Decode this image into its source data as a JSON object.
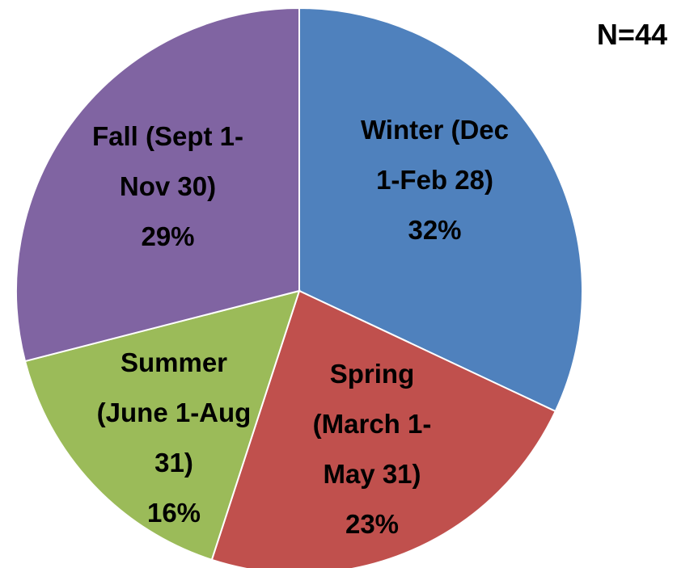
{
  "chart_data": {
    "type": "pie",
    "annotation": "N=44",
    "categories": [
      "Winter (Dec 1-Feb 28)",
      "Spring (March 1-May 31)",
      "Summer (June 1-Aug 31)",
      "Fall (Sept 1-Nov 30)"
    ],
    "values": [
      32,
      23,
      16,
      29
    ],
    "value_labels": [
      "32%",
      "23%",
      "16%",
      "29%"
    ],
    "colors": [
      "#4f81bd",
      "#c0504d",
      "#9bbb59",
      "#8064a2"
    ]
  }
}
